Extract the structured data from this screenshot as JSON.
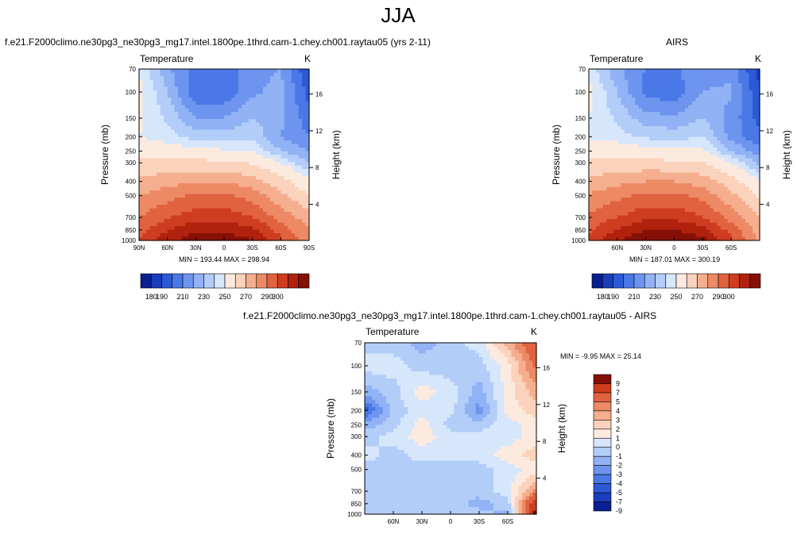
{
  "title": "JJA",
  "colors": {
    "abs_scale": [
      "#0a1f91",
      "#1a3dbd",
      "#2c5ad6",
      "#4a78e6",
      "#6d95ef",
      "#91b2f5",
      "#b3cdf9",
      "#d6e6fb",
      "#fdeadf",
      "#fbd2bb",
      "#f5af8f",
      "#ed8a65",
      "#e0623f",
      "#cf3d20",
      "#b0220d",
      "#851005"
    ],
    "diff_scale": [
      "#0a1f91",
      "#1a3dbd",
      "#2c5ad6",
      "#4a78e6",
      "#6d95ef",
      "#91b2f5",
      "#b3cdf9",
      "#d6e6fb",
      "#fdeadf",
      "#fbd2bb",
      "#f5af8f",
      "#ed8a65",
      "#e0623f",
      "#cf3d20",
      "#851005"
    ]
  },
  "panels": [
    {
      "title": "f.e21.F2000climo.ne30pg3_ne30pg3_mg17.intel.1800pe.1thrd.cam-1.chey.ch001.raytau05 (yrs 2-11)",
      "field": "Temperature",
      "unit": "K",
      "x_ticks": [
        "90N",
        "60N",
        "30N",
        "0",
        "30S",
        "60S",
        "90S"
      ],
      "min_max": "MIN = 193.44   MAX = 298.94"
    },
    {
      "title": "AIRS",
      "field": "Temperature",
      "unit": "K",
      "x_ticks": [
        "60N",
        "30N",
        "0",
        "30S",
        "60S"
      ],
      "min_max": "MIN = 187.01   MAX = 300.19"
    },
    {
      "title": "f.e21.F2000climo.ne30pg3_ne30pg3_mg17.intel.1800pe.1thrd.cam-1.chey.ch001.raytau05 - AIRS",
      "field": "Temperature",
      "unit": "K",
      "x_ticks": [
        "60N",
        "30N",
        "0",
        "30S",
        "60S"
      ],
      "min_max": "MIN = -9.95   MAX =  25.14"
    }
  ],
  "axes": {
    "ylabel": "Pressure (mb)",
    "y2label": "Height (km)",
    "pressure_ticks": [
      "70",
      "100",
      "150",
      "200",
      "250",
      "300",
      "400",
      "500",
      "700",
      "850",
      "1000"
    ],
    "height_ticks": [
      "16",
      "12",
      "8",
      "4"
    ]
  },
  "colorbar_abs": {
    "tick_labels": [
      "180",
      "190",
      "210",
      "230",
      "250",
      "270",
      "290",
      "300"
    ]
  },
  "colorbar_diff": {
    "tick_labels": [
      "9",
      "7",
      "5",
      "4",
      "3",
      "2",
      "1",
      "0",
      "-1",
      "-2",
      "-3",
      "-4",
      "-5",
      "-7",
      "-9"
    ]
  },
  "chart_data": [
    {
      "type": "heatmap",
      "title": "f.e21.F2000climo.ne30pg3_ne30pg3_mg17.intel.1800pe.1thrd.cam-1.chey.ch001.raytau05 (yrs 2-11)",
      "field": "Temperature",
      "units": "K",
      "xlabel": "",
      "ylabel": "Pressure (mb)",
      "y2label": "Height (km)",
      "x": [
        90,
        60,
        30,
        0,
        -30,
        -60,
        -90
      ],
      "y": [
        70,
        100,
        150,
        200,
        250,
        300,
        400,
        500,
        700,
        850,
        1000
      ],
      "xlim": [
        90,
        -90
      ],
      "ylim": [
        1000,
        70
      ],
      "y_scale": "log",
      "values": [
        [
          220,
          206,
          198,
          197,
          203,
          205,
          190
        ],
        [
          222,
          210,
          196,
          196,
          204,
          207,
          193
        ],
        [
          221,
          214,
          205,
          205,
          210,
          206,
          197
        ],
        [
          220,
          217,
          213,
          212,
          214,
          205,
          200
        ],
        [
          226,
          224,
          222,
          221,
          220,
          210,
          205
        ],
        [
          232,
          232,
          233,
          232,
          229,
          220,
          210
        ],
        [
          243,
          246,
          249,
          249,
          244,
          234,
          222
        ],
        [
          250,
          256,
          262,
          262,
          256,
          243,
          230
        ],
        [
          260,
          269,
          276,
          276,
          270,
          256,
          245
        ],
        [
          266,
          279,
          288,
          288,
          282,
          266,
          250
        ],
        [
          270,
          287,
          297,
          297,
          291,
          272,
          252
        ]
      ],
      "min": 193.44,
      "max": 298.94,
      "colorbar_levels": [
        180,
        190,
        210,
        230,
        250,
        270,
        290,
        300
      ]
    },
    {
      "type": "heatmap",
      "title": "AIRS",
      "field": "Temperature",
      "units": "K",
      "xlabel": "",
      "ylabel": "Pressure (mb)",
      "y2label": "Height (km)",
      "x": [
        90,
        60,
        30,
        0,
        -30,
        -60,
        -90
      ],
      "y": [
        70,
        100,
        150,
        200,
        250,
        300,
        400,
        500,
        700,
        850,
        1000
      ],
      "xlim": [
        90,
        -90
      ],
      "ylim": [
        1000,
        70
      ],
      "y_scale": "log",
      "values": [
        [
          218,
          206,
          200,
          199,
          204,
          203,
          188
        ],
        [
          222,
          210,
          198,
          197,
          205,
          206,
          190
        ],
        [
          220,
          214,
          207,
          206,
          210,
          203,
          193
        ],
        [
          219,
          217,
          214,
          213,
          215,
          203,
          196
        ],
        [
          226,
          225,
          222,
          222,
          221,
          210,
          202
        ],
        [
          232,
          232,
          233,
          232,
          230,
          220,
          208
        ],
        [
          243,
          247,
          250,
          250,
          245,
          234,
          220
        ],
        [
          251,
          257,
          263,
          263,
          257,
          243,
          228
        ],
        [
          262,
          270,
          277,
          277,
          271,
          256,
          240
        ],
        [
          268,
          281,
          290,
          290,
          284,
          266,
          245
        ],
        [
          272,
          289,
          299,
          299,
          293,
          272,
          248
        ]
      ],
      "min": 187.01,
      "max": 300.19,
      "colorbar_levels": [
        180,
        190,
        210,
        230,
        250,
        270,
        290,
        300
      ]
    },
    {
      "type": "heatmap",
      "title": "f.e21.F2000climo.ne30pg3_ne30pg3_mg17.intel.1800pe.1thrd.cam-1.chey.ch001.raytau05 - AIRS",
      "field": "Temperature",
      "units": "K",
      "xlabel": "",
      "ylabel": "Pressure (mb)",
      "y2label": "Height (km)",
      "x": [
        90,
        60,
        30,
        0,
        -30,
        -60,
        -90
      ],
      "y": [
        70,
        100,
        150,
        200,
        250,
        300,
        400,
        500,
        700,
        850,
        1000
      ],
      "xlim": [
        90,
        -90
      ],
      "ylim": [
        1000,
        70
      ],
      "y_scale": "log",
      "values": [
        [
          -1,
          -1,
          -2,
          -1,
          0,
          3,
          6
        ],
        [
          0,
          0,
          -1,
          -1,
          -1,
          1,
          5
        ],
        [
          -2,
          -1,
          1,
          0,
          -2,
          1,
          3
        ],
        [
          -5,
          -1,
          0,
          0,
          -3,
          1,
          2
        ],
        [
          -2,
          -1,
          1,
          -1,
          -1,
          0,
          1
        ],
        [
          -1,
          0,
          1,
          0,
          0,
          0,
          1
        ],
        [
          0,
          -1,
          0,
          0,
          0,
          1,
          2
        ],
        [
          -1,
          -1,
          -1,
          -1,
          -1,
          0,
          1
        ],
        [
          -1,
          -1,
          -1,
          -1,
          -1,
          0,
          4
        ],
        [
          -1,
          -1,
          -1,
          -1,
          -2,
          -1,
          8
        ],
        [
          -1,
          -1,
          -1,
          -1,
          -1,
          -2,
          9
        ]
      ],
      "min": -9.95,
      "max": 25.14,
      "colorbar_levels": [
        -9,
        -7,
        -5,
        -4,
        -3,
        -2,
        -1,
        0,
        1,
        2,
        3,
        4,
        5,
        7,
        9
      ]
    }
  ]
}
